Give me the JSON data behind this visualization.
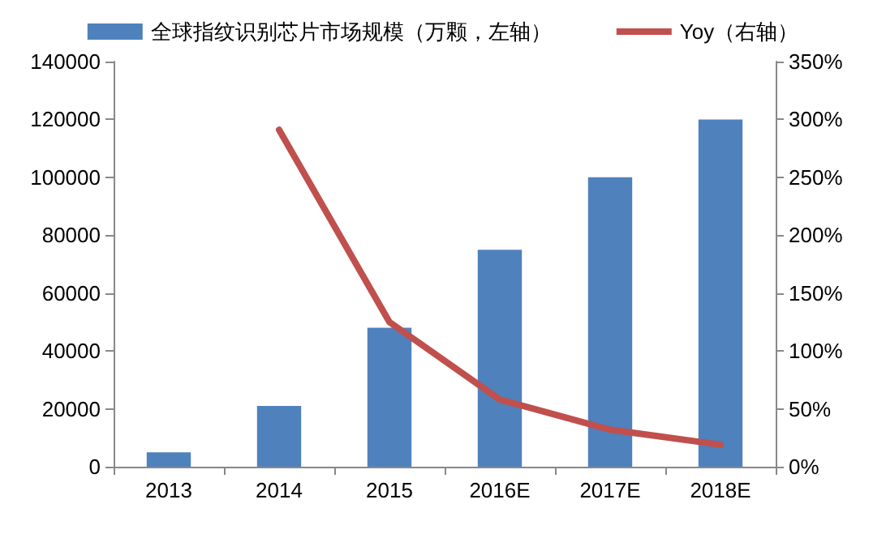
{
  "chart_data": {
    "type": "bar",
    "categories": [
      "2013",
      "2014",
      "2015",
      "2016E",
      "2017E",
      "2018E"
    ],
    "series": [
      {
        "name": "全球指纹识别芯片市场规模（万颗，左轴）",
        "color": "#4f81bd",
        "values": [
          5000,
          21000,
          48000,
          75000,
          100000,
          120000
        ]
      },
      {
        "name": "Yoy（右轴）",
        "type": "line",
        "axis": "y2",
        "color": "#c0504d",
        "values": [
          null,
          291,
          125,
          58,
          32,
          19
        ]
      }
    ],
    "ylim": [
      0,
      140000
    ],
    "yticks": [
      0,
      20000,
      40000,
      60000,
      80000,
      100000,
      120000,
      140000
    ],
    "y2lim": [
      0,
      350
    ],
    "y2ticks": [
      {
        "value": 0,
        "label": "0%"
      },
      {
        "value": 50,
        "label": "50%"
      },
      {
        "value": 100,
        "label": "100%"
      },
      {
        "value": 150,
        "label": "150%"
      },
      {
        "value": 200,
        "label": "200%"
      },
      {
        "value": 250,
        "label": "250%"
      },
      {
        "value": 300,
        "label": "300%"
      },
      {
        "value": 350,
        "label": "350%"
      }
    ],
    "grid": false,
    "legend": "top",
    "marker": "none",
    "line_style": "solid"
  }
}
